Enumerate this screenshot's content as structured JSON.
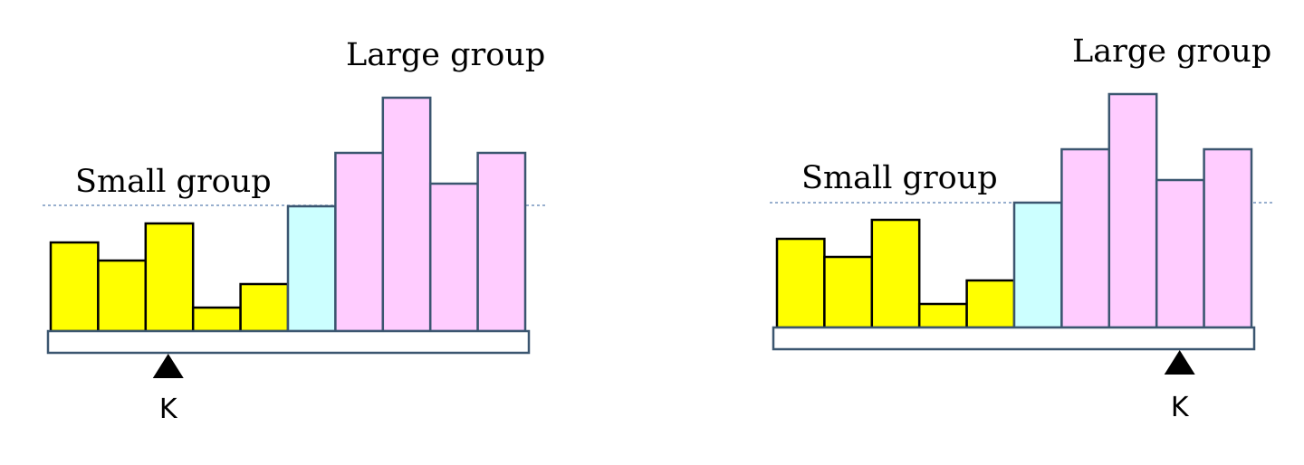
{
  "colors": {
    "small": "#ffff00",
    "pivot": "#ccffff",
    "large": "#ffccff",
    "outline_small": "#000000",
    "outline_large": "#3b5670",
    "beam_outline": "#3b5670",
    "threshold_line": "#5b7fb0",
    "fulcrum": "#000000"
  },
  "panels": [
    {
      "large_label": "Large group",
      "small_label": "Small group",
      "fulcrum_label": "K",
      "fulcrum_position": 0.25,
      "bars": [
        {
          "group": "small",
          "value": 98
        },
        {
          "group": "small",
          "value": 78
        },
        {
          "group": "small",
          "value": 119
        },
        {
          "group": "small",
          "value": 26
        },
        {
          "group": "small",
          "value": 52
        },
        {
          "group": "pivot",
          "value": 138
        },
        {
          "group": "large",
          "value": 197
        },
        {
          "group": "large",
          "value": 258
        },
        {
          "group": "large",
          "value": 163
        },
        {
          "group": "large",
          "value": 197
        }
      ],
      "threshold": 138
    },
    {
      "large_label": "Large group",
      "small_label": "Small group",
      "fulcrum_label": "K",
      "fulcrum_position": 0.845,
      "bars": [
        {
          "group": "small",
          "value": 98
        },
        {
          "group": "small",
          "value": 78
        },
        {
          "group": "small",
          "value": 119
        },
        {
          "group": "small",
          "value": 26
        },
        {
          "group": "small",
          "value": 52
        },
        {
          "group": "pivot",
          "value": 138
        },
        {
          "group": "large",
          "value": 197
        },
        {
          "group": "large",
          "value": 258
        },
        {
          "group": "large",
          "value": 163
        },
        {
          "group": "large",
          "value": 197
        }
      ],
      "threshold": 138
    }
  ]
}
